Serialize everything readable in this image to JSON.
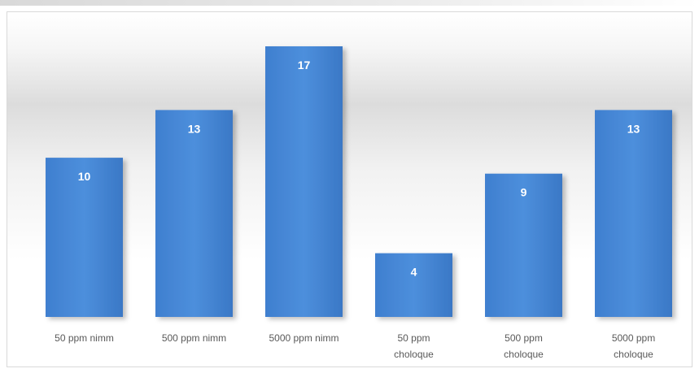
{
  "chart_data": {
    "type": "bar",
    "categories": [
      [
        "50 ppm nimm"
      ],
      [
        "500 ppm nimm"
      ],
      [
        "5000 ppm nimm"
      ],
      [
        "50 ppm",
        "choloque"
      ],
      [
        "500 ppm",
        "choloque"
      ],
      [
        "5000 ppm",
        "choloque"
      ]
    ],
    "values": [
      10,
      13,
      17,
      4,
      9,
      13
    ],
    "ylim": [
      0,
      17
    ],
    "grid": false,
    "bar_color": "#4a89d6",
    "label_color": "#ffffff"
  }
}
